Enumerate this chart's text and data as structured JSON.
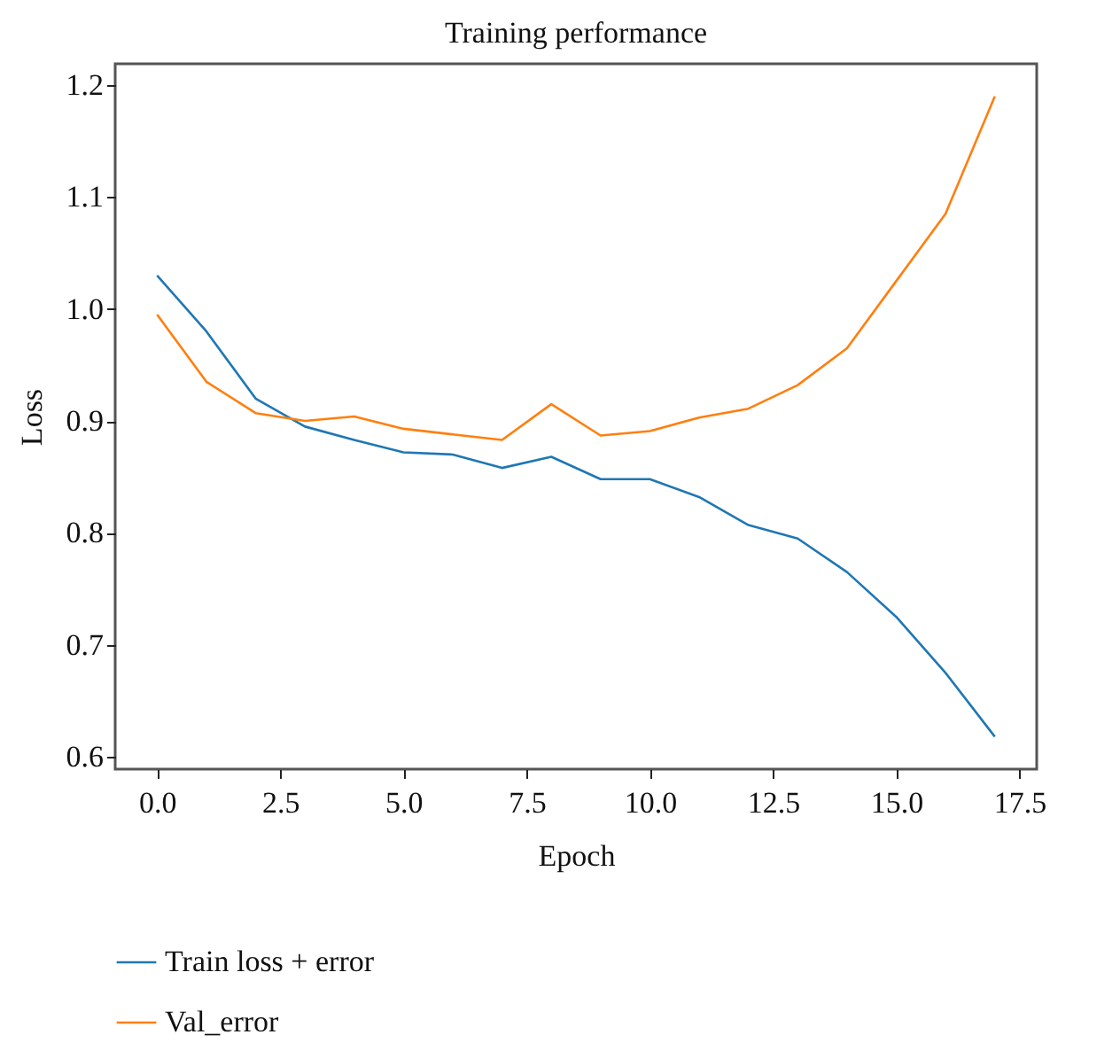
{
  "chart_data": {
    "type": "line",
    "title": "Training performance",
    "xlabel": "Epoch",
    "ylabel": "Loss",
    "x": [
      0,
      1,
      2,
      3,
      4,
      5,
      6,
      7,
      8,
      9,
      10,
      11,
      12,
      13,
      14,
      15,
      16,
      17
    ],
    "series": [
      {
        "name": "Train loss + error",
        "color": "#1f77b4",
        "values": [
          1.03,
          0.98,
          0.92,
          0.895,
          0.883,
          0.872,
          0.87,
          0.858,
          0.868,
          0.848,
          0.848,
          0.832,
          0.807,
          0.795,
          0.765,
          0.725,
          0.675,
          0.618
        ]
      },
      {
        "name": "Val_error",
        "color": "#ff7f0e",
        "values": [
          0.995,
          0.935,
          0.907,
          0.9,
          0.904,
          0.893,
          0.888,
          0.883,
          0.915,
          0.887,
          0.891,
          0.903,
          0.911,
          0.932,
          0.965,
          1.025,
          1.085,
          1.19
        ]
      }
    ],
    "xlim": [
      -0.85,
      17.85
    ],
    "ylim": [
      0.589,
      1.219
    ],
    "xticks": [
      {
        "value": 0,
        "label": "0.0"
      },
      2.5,
      {
        "value": 5,
        "label": "5.0"
      },
      7.5,
      {
        "value": 10,
        "label": "10.0"
      },
      12.5,
      {
        "value": 15,
        "label": "15.0"
      },
      17.5
    ],
    "yticks": [
      0.6,
      0.7,
      0.8,
      0.9,
      {
        "value": 1,
        "label": "1.0"
      },
      1.1,
      1.2
    ],
    "grid": false,
    "legend": "bottom",
    "marker": "none",
    "line_style": "solid"
  }
}
